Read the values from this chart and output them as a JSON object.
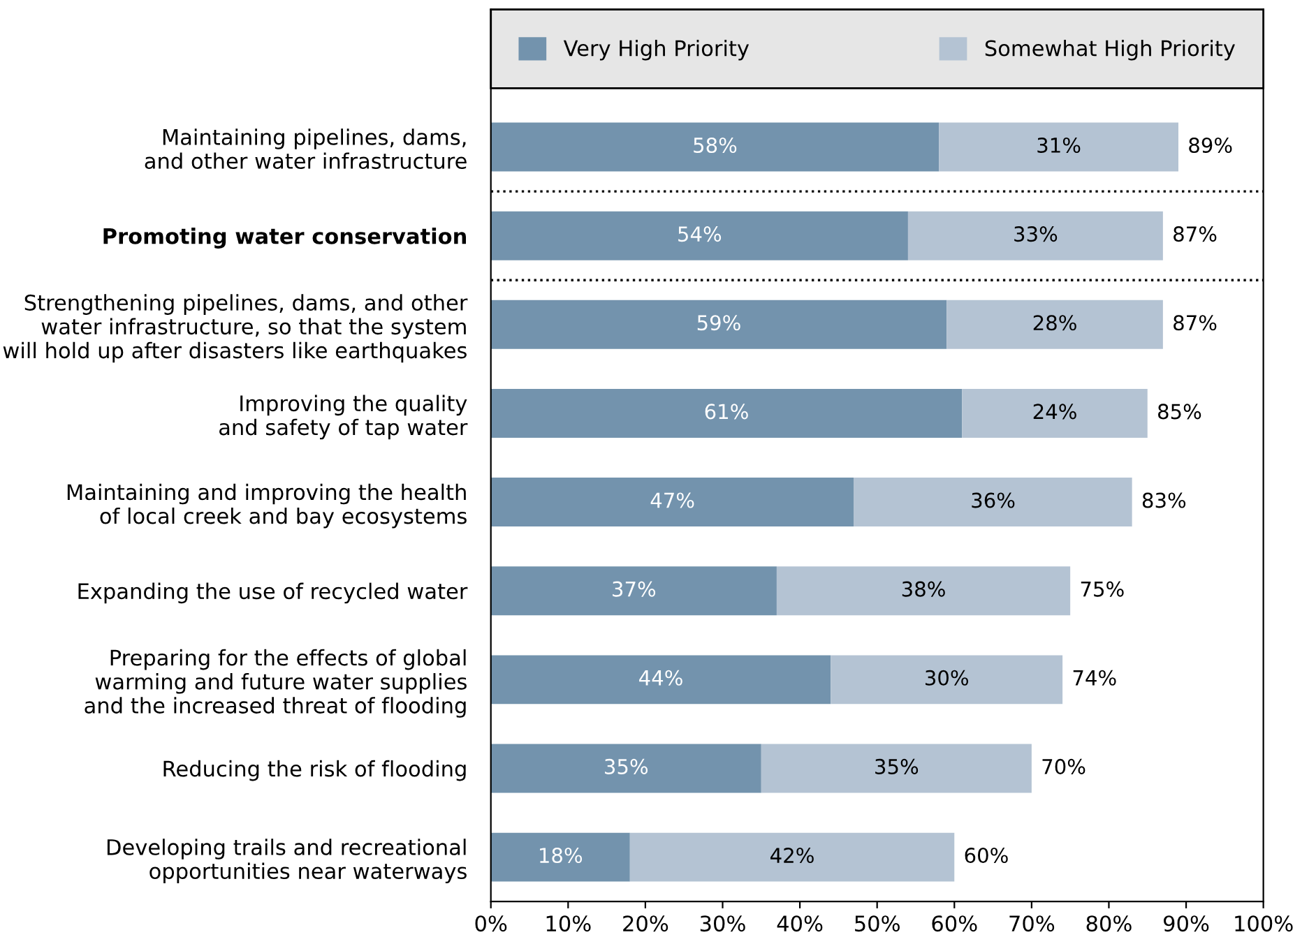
{
  "chart_data": {
    "type": "bar",
    "orientation": "horizontal",
    "stacked": true,
    "legend": "top",
    "grid": false,
    "categories": [
      "Maintaining pipelines, dams,\nand other water infrastructure",
      "Promoting water conservation",
      "Strengthening pipelines, dams, and other\nwater infrastructure, so that the system\nwill hold up after disasters like earthquakes",
      "Improving the quality\nand safety of tap water",
      "Maintaining and improving the health\nof local creek and bay ecosystems",
      "Expanding the use of recycled water",
      "Preparing for the effects of global\nwarming and future water supplies\nand the increased threat of flooding",
      "Reducing the risk of flooding",
      "Developing trails and recreational\nopportunities near waterways"
    ],
    "series": [
      {
        "name": "Very High Priority",
        "color": "#7393ad",
        "values": [
          58,
          54,
          59,
          61,
          47,
          37,
          44,
          35,
          18
        ],
        "value_labels": [
          "58%",
          "54%",
          "59%",
          "61%",
          "47%",
          "37%",
          "44%",
          "35%",
          "18%"
        ]
      },
      {
        "name": "Somewhat High Priority",
        "color": "#b4c3d3",
        "values": [
          31,
          33,
          28,
          24,
          36,
          38,
          30,
          35,
          42
        ],
        "value_labels": [
          "31%",
          "33%",
          "28%",
          "24%",
          "36%",
          "38%",
          "30%",
          "35%",
          "42%"
        ]
      }
    ],
    "totals": [
      "89%",
      "87%",
      "87%",
      "85%",
      "83%",
      "75%",
      "74%",
      "70%",
      "60%"
    ],
    "xlim": [
      0,
      100
    ],
    "xticks": [
      {
        "value": 0,
        "label": "0%"
      },
      {
        "value": 10,
        "label": "10%"
      },
      {
        "value": 20,
        "label": "20%"
      },
      {
        "value": 30,
        "label": "30%"
      },
      {
        "value": 40,
        "label": "40%"
      },
      {
        "value": 50,
        "label": "50%"
      },
      {
        "value": 60,
        "label": "60%"
      },
      {
        "value": 70,
        "label": "70%"
      },
      {
        "value": 80,
        "label": "80%"
      },
      {
        "value": 90,
        "label": "90%"
      },
      {
        "value": 100,
        "label": "100%"
      }
    ]
  }
}
